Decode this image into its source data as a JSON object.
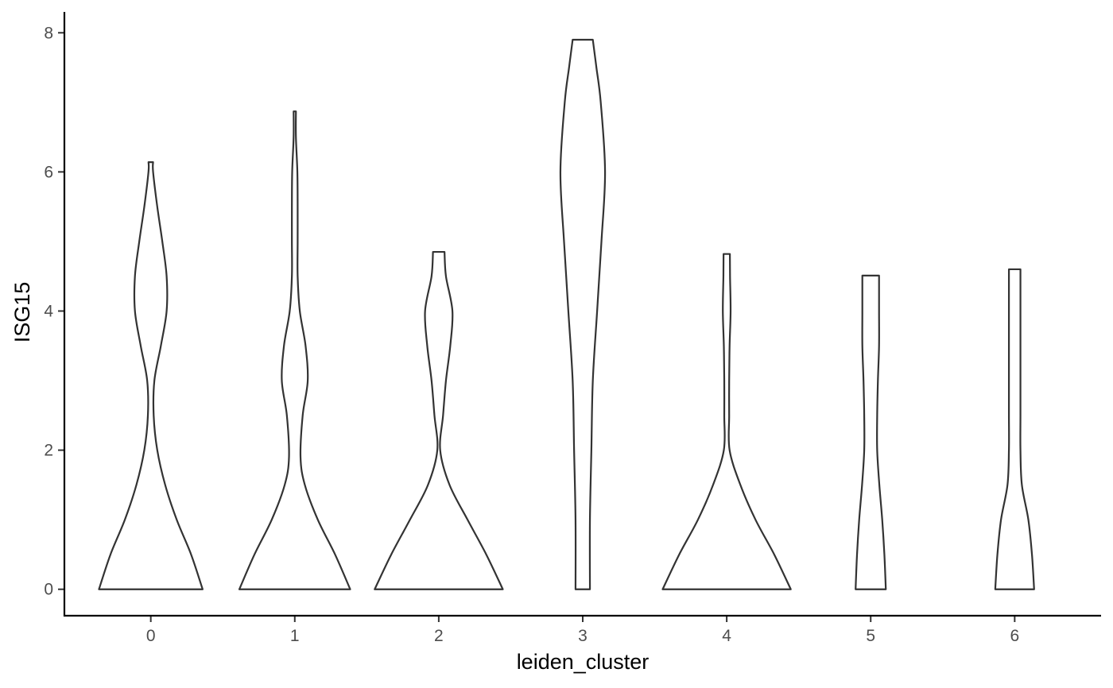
{
  "chart_data": {
    "type": "violin",
    "title": "",
    "xlabel": "leiden_cluster",
    "ylabel": "ISG15",
    "categories": [
      "0",
      "1",
      "2",
      "3",
      "4",
      "5",
      "6"
    ],
    "y_ticks": [
      "0",
      "2",
      "4",
      "6",
      "8"
    ],
    "ylim": [
      -0.38,
      8.3
    ],
    "grid": false,
    "legend": "none",
    "violins": [
      {
        "category": "0",
        "max": 6.14,
        "profile": [
          [
            0,
            0.36
          ],
          [
            0.5,
            0.28
          ],
          [
            1.0,
            0.18
          ],
          [
            1.5,
            0.1
          ],
          [
            2.0,
            0.045
          ],
          [
            2.5,
            0.02
          ],
          [
            3.0,
            0.025
          ],
          [
            3.5,
            0.07
          ],
          [
            4.0,
            0.11
          ],
          [
            4.5,
            0.11
          ],
          [
            5.0,
            0.08
          ],
          [
            5.5,
            0.045
          ],
          [
            6.0,
            0.016
          ],
          [
            6.14,
            0.016
          ]
        ]
      },
      {
        "category": "1",
        "max": 6.87,
        "profile": [
          [
            0,
            0.385
          ],
          [
            0.5,
            0.28
          ],
          [
            1.0,
            0.16
          ],
          [
            1.5,
            0.07
          ],
          [
            1.9,
            0.04
          ],
          [
            2.5,
            0.055
          ],
          [
            3.0,
            0.09
          ],
          [
            3.5,
            0.075
          ],
          [
            4.0,
            0.035
          ],
          [
            4.5,
            0.02
          ],
          [
            5.0,
            0.02
          ],
          [
            5.5,
            0.02
          ],
          [
            6.0,
            0.018
          ],
          [
            6.5,
            0.008
          ],
          [
            6.87,
            0.008
          ]
        ]
      },
      {
        "category": "2",
        "max": 4.85,
        "profile": [
          [
            0,
            0.445
          ],
          [
            0.5,
            0.33
          ],
          [
            1.0,
            0.2
          ],
          [
            1.5,
            0.075
          ],
          [
            2.0,
            0.01
          ],
          [
            2.5,
            0.03
          ],
          [
            3.0,
            0.05
          ],
          [
            3.5,
            0.08
          ],
          [
            4.0,
            0.095
          ],
          [
            4.5,
            0.05
          ],
          [
            4.85,
            0.04
          ]
        ]
      },
      {
        "category": "3",
        "max": 7.9,
        "profile": [
          [
            0,
            0.05
          ],
          [
            1.0,
            0.05
          ],
          [
            2.0,
            0.06
          ],
          [
            3.0,
            0.07
          ],
          [
            4.0,
            0.1
          ],
          [
            5.0,
            0.13
          ],
          [
            6.0,
            0.155
          ],
          [
            7.0,
            0.125
          ],
          [
            7.5,
            0.095
          ],
          [
            7.9,
            0.07
          ]
        ]
      },
      {
        "category": "4",
        "max": 4.82,
        "profile": [
          [
            0,
            0.445
          ],
          [
            0.5,
            0.33
          ],
          [
            1.0,
            0.2
          ],
          [
            1.5,
            0.095
          ],
          [
            2.0,
            0.02
          ],
          [
            2.5,
            0.017
          ],
          [
            3.0,
            0.017
          ],
          [
            3.5,
            0.02
          ],
          [
            4.0,
            0.027
          ],
          [
            4.5,
            0.023
          ],
          [
            4.82,
            0.022
          ]
        ]
      },
      {
        "category": "5",
        "max": 4.51,
        "profile": [
          [
            0,
            0.105
          ],
          [
            0.5,
            0.095
          ],
          [
            1.0,
            0.08
          ],
          [
            1.5,
            0.06
          ],
          [
            2.0,
            0.045
          ],
          [
            2.5,
            0.045
          ],
          [
            3.0,
            0.05
          ],
          [
            3.5,
            0.058
          ],
          [
            4.0,
            0.058
          ],
          [
            4.51,
            0.058
          ]
        ]
      },
      {
        "category": "6",
        "max": 4.6,
        "profile": [
          [
            0,
            0.135
          ],
          [
            0.5,
            0.12
          ],
          [
            1.0,
            0.095
          ],
          [
            1.5,
            0.05
          ],
          [
            2.0,
            0.04
          ],
          [
            2.5,
            0.04
          ],
          [
            3.0,
            0.04
          ],
          [
            3.5,
            0.04
          ],
          [
            4.0,
            0.04
          ],
          [
            4.6,
            0.04
          ]
        ]
      }
    ]
  }
}
